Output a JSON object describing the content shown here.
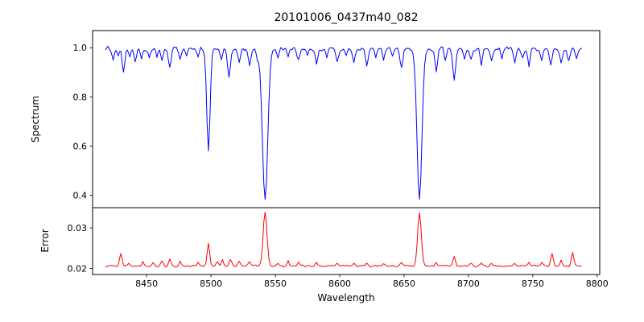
{
  "title": "20101006_0437m40_082",
  "chart_data": {
    "type": "line",
    "title": "20101006_0437m40_082",
    "xlabel": "Wavelength",
    "xlim": [
      8408,
      8802
    ],
    "x_range": [
      8418,
      8788
    ],
    "x_step": 1,
    "x_ticks": [
      {
        "v": 8450,
        "label": "8450"
      },
      {
        "v": 8500,
        "label": "8500"
      },
      {
        "v": 8550,
        "label": "8550"
      },
      {
        "v": 8600,
        "label": "8600"
      },
      {
        "v": 8650,
        "label": "8650"
      },
      {
        "v": 8700,
        "label": "8700"
      },
      {
        "v": 8750,
        "label": "8750"
      },
      {
        "v": 8800,
        "label": "8800"
      }
    ],
    "panels": [
      {
        "name": "spectrum",
        "ylabel": "Spectrum",
        "color": "#0000ff",
        "ylim": [
          0.35,
          1.07
        ],
        "y_ticks": [
          {
            "v": 1.0,
            "label": "1.0"
          },
          {
            "v": 0.8,
            "label": "0.8"
          },
          {
            "v": 0.6,
            "label": "0.6"
          },
          {
            "v": 0.4,
            "label": "0.4"
          }
        ],
        "baseline": 0.995,
        "noise_amp": 0.013,
        "seed": 1006,
        "features": [
          [
            8424,
            -0.045,
            0.9
          ],
          [
            8428,
            -0.03,
            0.8
          ],
          [
            8432,
            -0.095,
            0.9
          ],
          [
            8437,
            -0.04,
            0.8
          ],
          [
            8441,
            -0.055,
            0.9
          ],
          [
            8446,
            -0.04,
            0.8
          ],
          [
            8452,
            -0.035,
            0.8
          ],
          [
            8458,
            -0.03,
            0.8
          ],
          [
            8462,
            -0.05,
            0.9
          ],
          [
            8468,
            -0.075,
            1.0
          ],
          [
            8476,
            -0.045,
            0.9
          ],
          [
            8481,
            -0.03,
            0.8
          ],
          [
            8490,
            -0.035,
            0.8
          ],
          [
            8498,
            -0.41,
            1.3
          ],
          [
            8508,
            -0.04,
            0.9
          ],
          [
            8514,
            -0.115,
            1.1
          ],
          [
            8522,
            -0.05,
            0.9
          ],
          [
            8530,
            -0.06,
            0.9
          ],
          [
            8536,
            -0.035,
            0.8
          ],
          [
            8542,
            -0.61,
            2.1
          ],
          [
            8552,
            -0.035,
            0.8
          ],
          [
            8560,
            -0.04,
            0.8
          ],
          [
            8568,
            -0.045,
            0.9
          ],
          [
            8575,
            -0.03,
            0.8
          ],
          [
            8582,
            -0.06,
            0.9
          ],
          [
            8590,
            -0.035,
            0.8
          ],
          [
            8598,
            -0.05,
            0.9
          ],
          [
            8605,
            -0.03,
            0.8
          ],
          [
            8611,
            -0.06,
            0.9
          ],
          [
            8621,
            -0.065,
            0.9
          ],
          [
            8628,
            -0.035,
            0.8
          ],
          [
            8634,
            -0.045,
            0.8
          ],
          [
            8641,
            -0.03,
            0.8
          ],
          [
            8648,
            -0.08,
            1.0
          ],
          [
            8662,
            -0.615,
            1.9
          ],
          [
            8675,
            -0.09,
            1.0
          ],
          [
            8682,
            -0.04,
            0.8
          ],
          [
            8689,
            -0.12,
            1.1
          ],
          [
            8697,
            -0.035,
            0.8
          ],
          [
            8702,
            -0.045,
            0.8
          ],
          [
            8710,
            -0.06,
            0.9
          ],
          [
            8718,
            -0.05,
            0.9
          ],
          [
            8726,
            -0.035,
            0.8
          ],
          [
            8736,
            -0.055,
            0.9
          ],
          [
            8742,
            -0.04,
            0.8
          ],
          [
            8747,
            -0.065,
            0.9
          ],
          [
            8757,
            -0.055,
            0.9
          ],
          [
            8764,
            -0.07,
            0.9
          ],
          [
            8772,
            -0.06,
            0.9
          ],
          [
            8778,
            -0.05,
            0.9
          ],
          [
            8784,
            -0.04,
            0.8
          ]
        ]
      },
      {
        "name": "error",
        "ylabel": "Error",
        "color": "#ff0000",
        "ylim": [
          0.0185,
          0.035
        ],
        "y_ticks": [
          {
            "v": 0.03,
            "label": "0.03"
          },
          {
            "v": 0.02,
            "label": "0.02"
          }
        ],
        "baseline": 0.0206,
        "noise_amp": 0.00038,
        "seed": 437,
        "features": [
          [
            8430,
            0.003,
            1.0
          ],
          [
            8436,
            0.0008,
            0.8
          ],
          [
            8447,
            0.0012,
            0.8
          ],
          [
            8455,
            0.0008,
            0.8
          ],
          [
            8462,
            0.0014,
            0.9
          ],
          [
            8468,
            0.0018,
            0.9
          ],
          [
            8476,
            0.0012,
            0.8
          ],
          [
            8490,
            0.0008,
            0.8
          ],
          [
            8498,
            0.0055,
            1.0
          ],
          [
            8505,
            0.0012,
            0.8
          ],
          [
            8509,
            0.0016,
            0.8
          ],
          [
            8515,
            0.0018,
            0.9
          ],
          [
            8522,
            0.001,
            0.8
          ],
          [
            8530,
            0.001,
            0.8
          ],
          [
            8542,
            0.0133,
            1.5
          ],
          [
            8552,
            0.0008,
            0.8
          ],
          [
            8560,
            0.0012,
            0.8
          ],
          [
            8568,
            0.0008,
            0.8
          ],
          [
            8582,
            0.0008,
            0.8
          ],
          [
            8598,
            0.0007,
            0.8
          ],
          [
            8611,
            0.0008,
            0.8
          ],
          [
            8621,
            0.0008,
            0.8
          ],
          [
            8634,
            0.0006,
            0.8
          ],
          [
            8648,
            0.001,
            0.9
          ],
          [
            8662,
            0.0132,
            1.4
          ],
          [
            8675,
            0.001,
            0.8
          ],
          [
            8689,
            0.0022,
            1.0
          ],
          [
            8702,
            0.0008,
            0.8
          ],
          [
            8710,
            0.0008,
            0.8
          ],
          [
            8718,
            0.0007,
            0.8
          ],
          [
            8736,
            0.0008,
            0.8
          ],
          [
            8747,
            0.001,
            0.8
          ],
          [
            8757,
            0.0008,
            0.8
          ],
          [
            8765,
            0.003,
            0.9
          ],
          [
            8772,
            0.0016,
            0.8
          ],
          [
            8781,
            0.0034,
            0.9
          ]
        ]
      }
    ]
  }
}
